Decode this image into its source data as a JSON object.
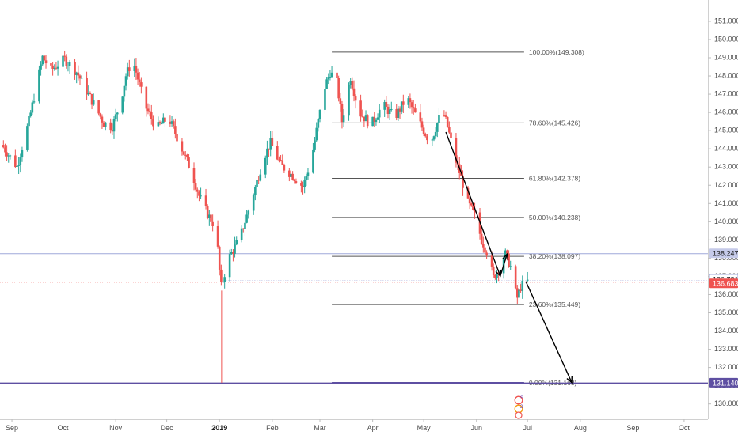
{
  "chart_data": {
    "type": "candlestick",
    "symbol": "",
    "ylim": [
      129.4,
      151.8
    ],
    "y_ticks": [
      130,
      131,
      132,
      133,
      134,
      135,
      136,
      137,
      138,
      139,
      140,
      141,
      142,
      143,
      144,
      145,
      146,
      147,
      148,
      149,
      150,
      151
    ],
    "y_tick_labels": [
      "130.000",
      "131.000",
      "132.000",
      "133.000",
      "134.000",
      "135.000",
      "136.000",
      "137.000",
      "138.000",
      "139.000",
      "140.000",
      "141.000",
      "142.000",
      "143.000",
      "144.000",
      "145.000",
      "146.000",
      "147.000",
      "148.000",
      "149.000",
      "150.000",
      "151.000"
    ],
    "x_range": [
      "2018-08-25",
      "2019-10-15"
    ],
    "x_ticks": [
      {
        "date": "2018-09-01",
        "label": "Sep",
        "bold": false
      },
      {
        "date": "2018-10-01",
        "label": "Oct",
        "bold": false
      },
      {
        "date": "2018-11-01",
        "label": "Nov",
        "bold": false
      },
      {
        "date": "2018-12-01",
        "label": "Dec",
        "bold": false
      },
      {
        "date": "2019-01-01",
        "label": "2019",
        "bold": true
      },
      {
        "date": "2019-02-01",
        "label": "Feb",
        "bold": false
      },
      {
        "date": "2019-03-01",
        "label": "Mar",
        "bold": false
      },
      {
        "date": "2019-04-01",
        "label": "Apr",
        "bold": false
      },
      {
        "date": "2019-05-01",
        "label": "May",
        "bold": false
      },
      {
        "date": "2019-06-01",
        "label": "Jun",
        "bold": false
      },
      {
        "date": "2019-07-01",
        "label": "Jul",
        "bold": false
      },
      {
        "date": "2019-08-01",
        "label": "Aug",
        "bold": false
      },
      {
        "date": "2019-09-01",
        "label": "Sep",
        "bold": false
      },
      {
        "date": "2019-10-01",
        "label": "Oct",
        "bold": false
      }
    ],
    "colors": {
      "up": "#26a69a",
      "down": "#ef5350",
      "fib_line": "#555555",
      "horizontal_blue": "#9fa8da",
      "current_red": "#ef5350",
      "purple": "#5e4fa2",
      "arrow": "#000000"
    },
    "price_path": [
      {
        "date": "2018-08-27",
        "price": 144.2
      },
      {
        "date": "2018-09-05",
        "price": 143.0
      },
      {
        "date": "2018-09-12",
        "price": 145.5
      },
      {
        "date": "2018-09-20",
        "price": 149.0
      },
      {
        "date": "2018-09-25",
        "price": 148.3
      },
      {
        "date": "2018-10-03",
        "price": 148.9
      },
      {
        "date": "2018-10-10",
        "price": 148.2
      },
      {
        "date": "2018-10-18",
        "price": 146.8
      },
      {
        "date": "2018-10-26",
        "price": 145.4
      },
      {
        "date": "2018-10-31",
        "price": 145.2
      },
      {
        "date": "2018-11-05",
        "price": 146.6
      },
      {
        "date": "2018-11-08",
        "price": 148.0
      },
      {
        "date": "2018-11-12",
        "price": 148.9
      },
      {
        "date": "2018-11-19",
        "price": 146.4
      },
      {
        "date": "2018-11-26",
        "price": 145.1
      },
      {
        "date": "2018-12-03",
        "price": 145.7
      },
      {
        "date": "2018-12-10",
        "price": 144.2
      },
      {
        "date": "2018-12-17",
        "price": 142.6
      },
      {
        "date": "2018-12-21",
        "price": 141.4
      },
      {
        "date": "2018-12-26",
        "price": 140.4
      },
      {
        "date": "2018-12-31",
        "price": 139.6
      },
      {
        "date": "2019-01-02",
        "price": 137.3
      },
      {
        "date": "2019-01-03",
        "price": 136.4
      },
      {
        "date": "2019-01-07",
        "price": 137.9
      },
      {
        "date": "2019-01-14",
        "price": 139.1
      },
      {
        "date": "2019-01-21",
        "price": 141.2
      },
      {
        "date": "2019-01-28",
        "price": 143.5
      },
      {
        "date": "2019-02-01",
        "price": 144.3
      },
      {
        "date": "2019-02-07",
        "price": 143.1
      },
      {
        "date": "2019-02-14",
        "price": 142.5
      },
      {
        "date": "2019-02-20",
        "price": 141.9
      },
      {
        "date": "2019-02-25",
        "price": 143.4
      },
      {
        "date": "2019-03-01",
        "price": 145.5
      },
      {
        "date": "2019-03-05",
        "price": 147.4
      },
      {
        "date": "2019-03-08",
        "price": 148.2
      },
      {
        "date": "2019-03-12",
        "price": 147.6
      },
      {
        "date": "2019-03-15",
        "price": 145.5
      },
      {
        "date": "2019-03-20",
        "price": 147.9
      },
      {
        "date": "2019-03-25",
        "price": 146.0
      },
      {
        "date": "2019-04-01",
        "price": 145.3
      },
      {
        "date": "2019-04-08",
        "price": 146.4
      },
      {
        "date": "2019-04-15",
        "price": 145.7
      },
      {
        "date": "2019-04-22",
        "price": 146.8
      },
      {
        "date": "2019-04-29",
        "price": 145.5
      },
      {
        "date": "2019-05-06",
        "price": 144.3
      },
      {
        "date": "2019-05-10",
        "price": 145.4
      },
      {
        "date": "2019-05-13",
        "price": 146.1
      },
      {
        "date": "2019-05-16",
        "price": 145.2
      },
      {
        "date": "2019-05-20",
        "price": 143.6
      },
      {
        "date": "2019-05-24",
        "price": 142.4
      },
      {
        "date": "2019-05-28",
        "price": 141.0
      },
      {
        "date": "2019-06-01",
        "price": 140.3
      },
      {
        "date": "2019-06-05",
        "price": 139.0
      },
      {
        "date": "2019-06-09",
        "price": 138.1
      },
      {
        "date": "2019-06-12",
        "price": 136.9
      },
      {
        "date": "2019-06-16",
        "price": 137.6
      },
      {
        "date": "2019-06-19",
        "price": 138.2
      },
      {
        "date": "2019-06-22",
        "price": 137.5
      },
      {
        "date": "2019-06-24",
        "price": 136.4
      },
      {
        "date": "2019-06-26",
        "price": 135.8
      },
      {
        "date": "2019-06-28",
        "price": 136.4
      },
      {
        "date": "2019-07-01",
        "price": 136.7
      }
    ],
    "fib_levels": [
      {
        "label": "100.00%(149.308)",
        "price": 149.308
      },
      {
        "label": "78.60%(145.426)",
        "price": 145.426
      },
      {
        "label": "61.80%(142.378)",
        "price": 142.378
      },
      {
        "label": "50.00%(140.238)",
        "price": 140.238
      },
      {
        "label": "38.20%(138.097)",
        "price": 138.097
      },
      {
        "label": "23.60%(135.449)",
        "price": 135.449
      },
      {
        "label": "0.00%(131.168)",
        "price": 131.168
      }
    ],
    "fib_start_date": "2019-03-08",
    "fib_end_date": "2019-06-29",
    "horizontal_lines": [
      {
        "price": 138.247,
        "label": "138.247",
        "style": "blue"
      },
      {
        "price": 136.781,
        "label": "136.781",
        "style": "light"
      },
      {
        "price": 136.683,
        "label": "136.683",
        "style": "red"
      },
      {
        "price": 131.14,
        "label": "131.140",
        "style": "purple"
      }
    ],
    "vertical_line": {
      "date": "2019-01-02",
      "from_price": 136.2,
      "to_price": 131.14
    },
    "arrows": [
      {
        "from": {
          "date": "2019-05-14",
          "price": 144.9
        },
        "to": {
          "date": "2019-06-15",
          "price": 137.0
        }
      },
      {
        "from": {
          "date": "2019-06-15",
          "price": 137.0
        },
        "to": {
          "date": "2019-06-19",
          "price": 138.2
        }
      },
      {
        "from": {
          "date": "2019-06-30",
          "price": 136.7
        },
        "to": {
          "date": "2019-07-27",
          "price": 131.15
        }
      }
    ],
    "event_badges": [
      {
        "date": "2019-06-23",
        "text": "S"
      },
      {
        "date": "2019-06-23",
        "text": "2"
      }
    ]
  }
}
